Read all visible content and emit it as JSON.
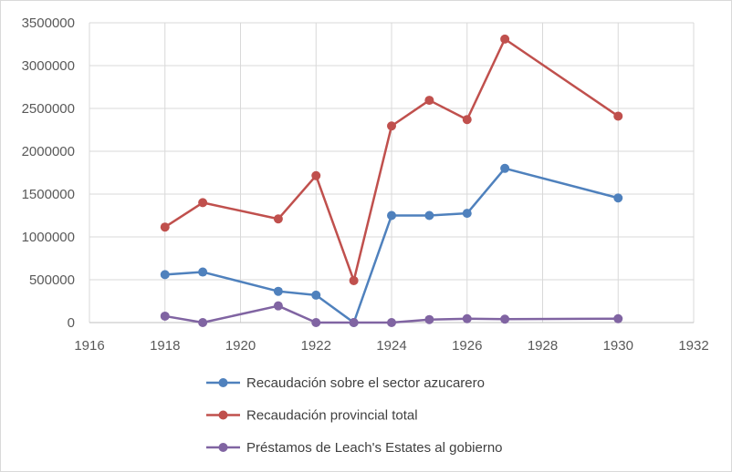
{
  "chart_data": {
    "type": "line",
    "title": "",
    "xlabel": "",
    "ylabel": "",
    "xlim": [
      1916,
      1932
    ],
    "ylim": [
      0,
      3500000
    ],
    "x_ticks": [
      1916,
      1918,
      1920,
      1922,
      1924,
      1926,
      1928,
      1930,
      1932
    ],
    "y_ticks": [
      0,
      500000,
      1000000,
      1500000,
      2000000,
      2500000,
      3000000,
      3500000
    ],
    "x_tick_labels": [
      "1916",
      "1918",
      "1920",
      "1922",
      "1924",
      "1926",
      "1928",
      "1930",
      "1932"
    ],
    "y_tick_labels": [
      "0",
      "500000",
      "1000000",
      "1500000",
      "2000000",
      "2500000",
      "3000000",
      "3500000"
    ],
    "grid": true,
    "legend_position": "bottom",
    "series": [
      {
        "name": "Recaudación sobre el sector azucarero",
        "color": "#4f81bd",
        "x": [
          1918,
          1919,
          1921,
          1922,
          1923,
          1924,
          1925,
          1926,
          1927,
          1930
        ],
        "y": [
          560000,
          590000,
          365000,
          320000,
          0,
          1250000,
          1250000,
          1275000,
          1800000,
          1455000
        ]
      },
      {
        "name": "Recaudación provincial total",
        "color": "#c0504d",
        "x": [
          1918,
          1919,
          1921,
          1922,
          1923,
          1924,
          1925,
          1926,
          1927,
          1930
        ],
        "y": [
          1115000,
          1400000,
          1210000,
          1715000,
          490000,
          2295000,
          2595000,
          2370000,
          3310000,
          2410000
        ]
      },
      {
        "name": "Préstamos de Leach's Estates al gobierno",
        "color": "#8064a2",
        "x": [
          1918,
          1919,
          1921,
          1922,
          1923,
          1924,
          1925,
          1926,
          1927,
          1930
        ],
        "y": [
          75000,
          0,
          195000,
          0,
          0,
          0,
          35000,
          45000,
          40000,
          45000
        ]
      }
    ]
  }
}
